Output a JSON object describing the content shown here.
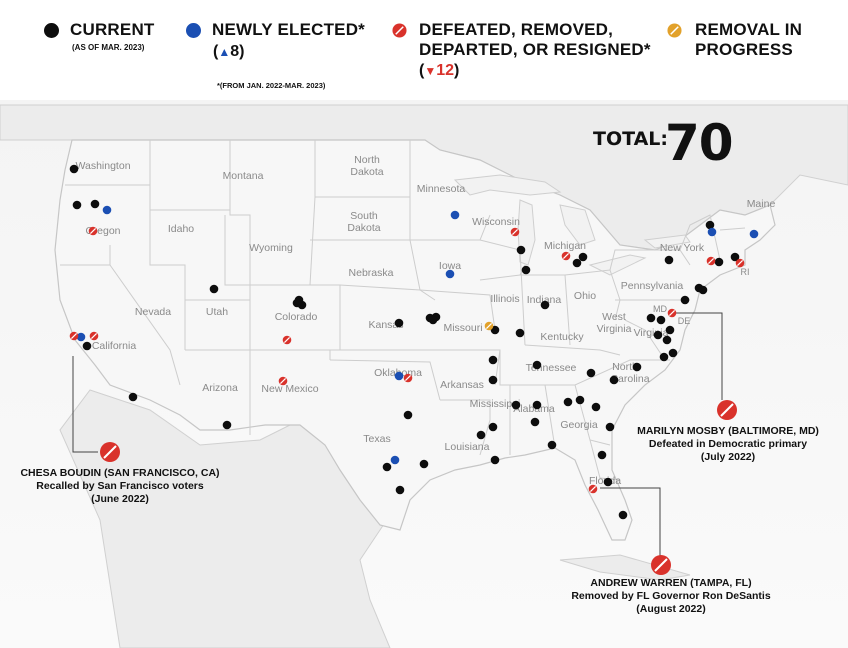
{
  "legend": {
    "current": {
      "label": "CURRENT",
      "note": "(AS OF MAR. 2023)",
      "color": "#0d0d0d"
    },
    "newly_elected": {
      "label": "NEWLY ELECTED*",
      "count_open": "(",
      "arrow": "▲",
      "count": "8",
      "count_close": ")",
      "note": "*(FROM JAN. 2022-MAR. 2023)",
      "color": "#1b4fb3"
    },
    "defeated": {
      "label_line1": "DEFEATED, REMOVED,",
      "label_line2": "DEPARTED, OR RESIGNED*",
      "count_open": "(",
      "arrow": "▼",
      "count": "12",
      "count_close": ")",
      "color": "#d9322b"
    },
    "removal": {
      "label_line1": "REMOVAL IN",
      "label_line2": "PROGRESS",
      "color": "#e2a12a"
    }
  },
  "total": {
    "label": "TOTAL:",
    "value": "70"
  },
  "states": {
    "washington": "Washington",
    "oregon": "Oregon",
    "california": "California",
    "idaho": "Idaho",
    "nevada": "Nevada",
    "montana": "Montana",
    "wyoming": "Wyoming",
    "utah": "Utah",
    "arizona": "Arizona",
    "colorado": "Colorado",
    "new_mexico": "New Mexico",
    "north_dakota_1": "North",
    "north_dakota_2": "Dakota",
    "south_dakota_1": "South",
    "south_dakota_2": "Dakota",
    "nebraska": "Nebraska",
    "kansas": "Kansas",
    "oklahoma": "Oklahoma",
    "texas": "Texas",
    "minnesota": "Minnesota",
    "iowa": "Iowa",
    "missouri": "Missouri",
    "arkansas": "Arkansas",
    "louisiana": "Louisiana",
    "wisconsin": "Wisconsin",
    "illinois": "Illinois",
    "mississippi": "Mississippi",
    "michigan": "Michigan",
    "indiana": "Indiana",
    "kentucky": "Kentucky",
    "tennessee": "Tennessee",
    "alabama": "Alabama",
    "ohio": "Ohio",
    "georgia": "Georgia",
    "florida": "Florida",
    "west_virginia_1": "West",
    "west_virginia_2": "Virginia",
    "virginia": "Virginia",
    "north_carolina_1": "North",
    "north_carolina_2": "Carolina",
    "pennsylvania": "Pennsylvania",
    "new_york": "New York",
    "maine": "Maine",
    "md": "MD",
    "de": "DE",
    "ri": "RI"
  },
  "callouts": {
    "boudin": {
      "name": "CHESA BOUDIN (SAN FRANCISCO, CA)",
      "line1": "Recalled by San Francisco voters",
      "line2": "(June 2022)"
    },
    "mosby": {
      "name": "MARILYN MOSBY (BALTIMORE, MD)",
      "line1": "Defeated in Democratic primary",
      "line2": "(July 2022)"
    },
    "warren": {
      "name": "ANDREW WARREN (TAMPA, FL)",
      "line1": "Removed by FL Governor Ron DeSantis",
      "line2": "(August 2022)"
    }
  },
  "markers": {
    "current": [
      [
        74,
        169
      ],
      [
        77,
        205
      ],
      [
        95,
        204
      ],
      [
        87,
        346
      ],
      [
        133,
        397
      ],
      [
        227,
        425
      ],
      [
        214,
        289
      ],
      [
        297,
        303
      ],
      [
        302,
        305
      ],
      [
        299,
        300
      ],
      [
        430,
        318
      ],
      [
        436,
        317
      ],
      [
        433,
        320
      ],
      [
        399,
        323
      ],
      [
        408,
        415
      ],
      [
        400,
        490
      ],
      [
        387,
        467
      ],
      [
        424,
        464
      ],
      [
        481,
        435
      ],
      [
        493,
        427
      ],
      [
        495,
        460
      ],
      [
        493,
        380
      ],
      [
        493,
        360
      ],
      [
        495,
        330
      ],
      [
        521,
        250
      ],
      [
        526,
        270
      ],
      [
        520,
        333
      ],
      [
        545,
        305
      ],
      [
        537,
        365
      ],
      [
        516,
        405
      ],
      [
        537,
        405
      ],
      [
        535,
        422
      ],
      [
        552,
        445
      ],
      [
        568,
        402
      ],
      [
        580,
        400
      ],
      [
        596,
        407
      ],
      [
        602,
        455
      ],
      [
        610,
        427
      ],
      [
        608,
        482
      ],
      [
        623,
        515
      ],
      [
        614,
        380
      ],
      [
        591,
        373
      ],
      [
        637,
        367
      ],
      [
        664,
        357
      ],
      [
        658,
        335
      ],
      [
        667,
        340
      ],
      [
        651,
        318
      ],
      [
        661,
        320
      ],
      [
        670,
        330
      ],
      [
        673,
        353
      ],
      [
        685,
        300
      ],
      [
        699,
        288
      ],
      [
        703,
        290
      ],
      [
        710,
        225
      ],
      [
        719,
        262
      ],
      [
        735,
        257
      ],
      [
        669,
        260
      ],
      [
        583,
        257
      ],
      [
        577,
        263
      ]
    ],
    "newly_elected": [
      [
        107,
        210
      ],
      [
        81,
        337
      ],
      [
        455,
        215
      ],
      [
        450,
        274
      ],
      [
        399,
        376
      ],
      [
        395,
        460
      ],
      [
        712,
        232
      ],
      [
        754,
        234
      ]
    ],
    "defeated": [
      [
        93,
        231
      ],
      [
        74,
        336
      ],
      [
        94,
        336
      ],
      [
        287,
        340
      ],
      [
        283,
        381
      ],
      [
        408,
        378
      ],
      [
        515,
        232
      ],
      [
        566,
        256
      ],
      [
        672,
        313
      ],
      [
        711,
        261
      ],
      [
        740,
        263
      ],
      [
        593,
        489
      ]
    ],
    "removal": [
      [
        489,
        326
      ]
    ]
  }
}
